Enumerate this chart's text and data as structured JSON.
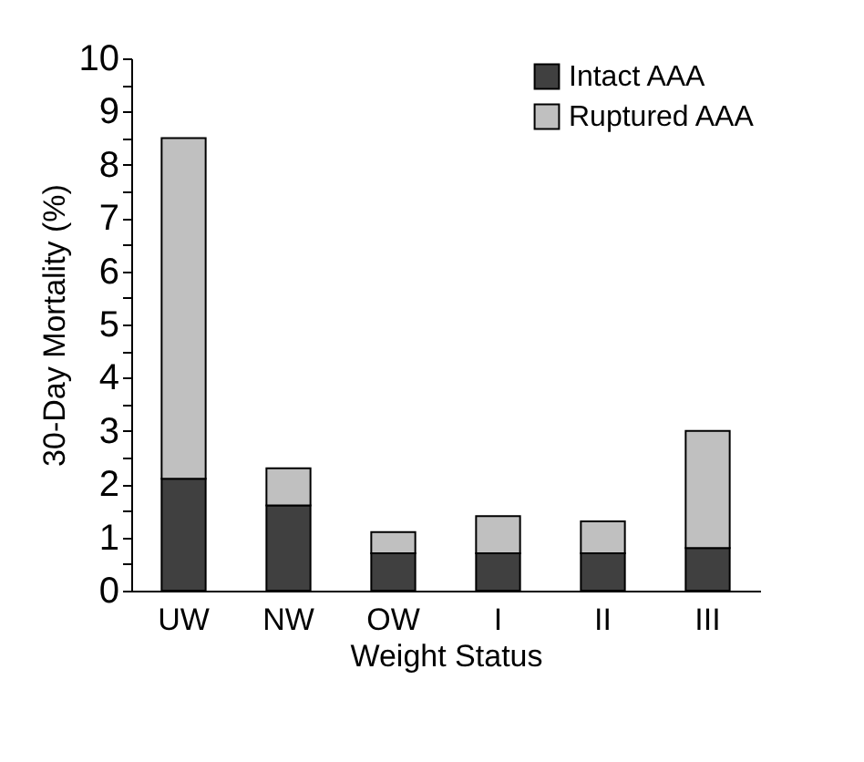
{
  "chart_data": {
    "type": "bar",
    "stacked": true,
    "xlabel": "Weight Status",
    "ylabel": "30-Day Mortality (%)",
    "categories": [
      "UW",
      "NW",
      "OW",
      "I",
      "II",
      "III"
    ],
    "series": [
      {
        "name": "Intact AAA",
        "color": "#404040",
        "values": [
          2.1,
          1.6,
          0.7,
          0.7,
          0.7,
          0.8
        ]
      },
      {
        "name": "Ruptured AAA",
        "color": "#c0c0c0",
        "values": [
          6.4,
          0.7,
          0.4,
          0.7,
          0.6,
          2.2
        ]
      }
    ],
    "ylim": [
      0,
      10
    ],
    "yticks": [
      0,
      {
        "value": 0.5,
        "label": null
      },
      1,
      {
        "value": 1.5,
        "label": null
      },
      2,
      {
        "value": 2.5,
        "label": null
      },
      3,
      {
        "value": 3.5,
        "label": null
      },
      4,
      {
        "value": 4.5,
        "label": null
      },
      5,
      {
        "value": 5.5,
        "label": null
      },
      6,
      {
        "value": 6.5,
        "label": null
      },
      7,
      {
        "value": 7.5,
        "label": null
      },
      8,
      {
        "value": 8.5,
        "label": null
      },
      9,
      {
        "value": 9.5,
        "label": null
      },
      10
    ],
    "legend": "top right",
    "grid": false
  }
}
